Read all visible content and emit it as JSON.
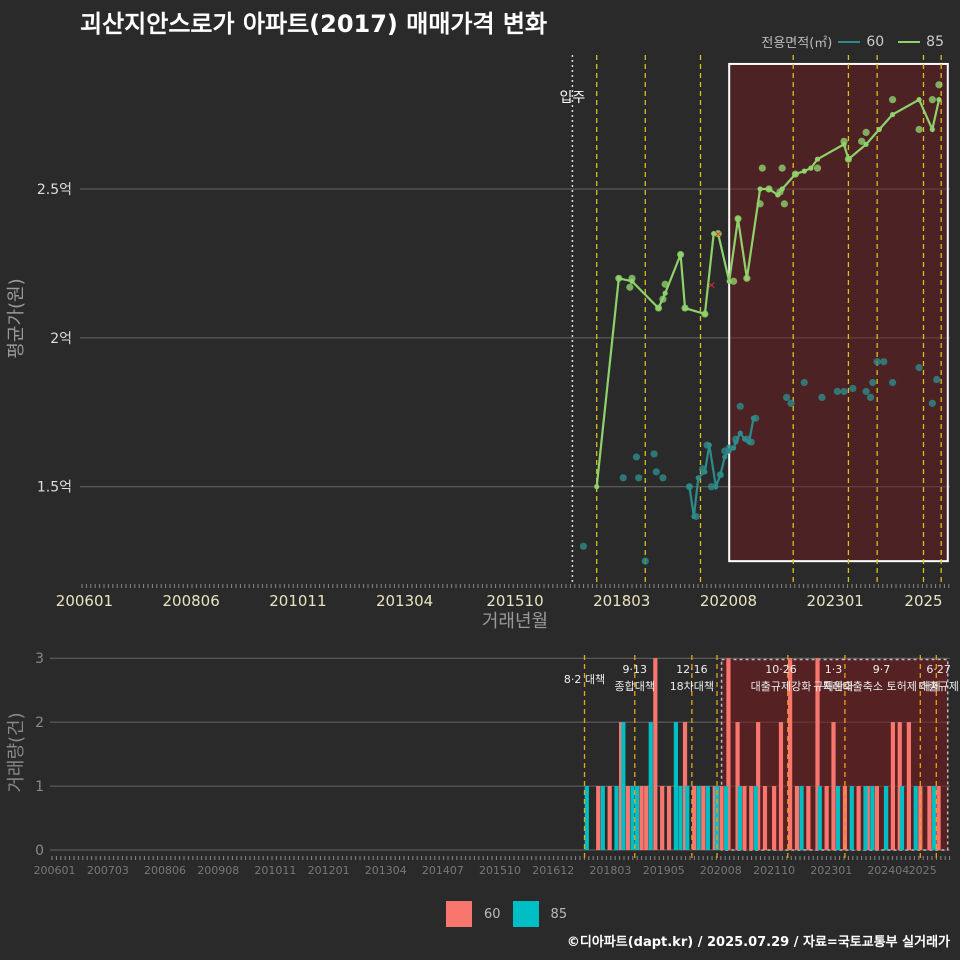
{
  "title": "괴산지안스로가 아파트(2017) 매매가격 변화",
  "footer": "©디아파트(dapt.kr) / 2025.07.29 / 자료=국토교통부 실거래가",
  "legend_title": "전용면적(㎡)",
  "colors": {
    "s60_line": "#2e8b8b",
    "s85_line": "#8fd16a",
    "bar60": "#f8766d",
    "bar85": "#00bfc4",
    "policy": "#d8c11a",
    "bg": "#2a2a2a"
  },
  "chart_data": [
    {
      "type": "line",
      "name": "price",
      "xlabel": "거래년월",
      "ylabel": "평균가(원)",
      "x_ticks": [
        "200601",
        "200806",
        "201011",
        "201304",
        "201510",
        "201803",
        "202008",
        "202301",
        "2025"
      ],
      "y_ticks": [
        {
          "v": 1.5,
          "label": "1.5억"
        },
        {
          "v": 2.0,
          "label": "2억"
        },
        {
          "v": 2.5,
          "label": "2.5억"
        }
      ],
      "ylim": [
        1.18,
        2.95
      ],
      "xlim": [
        2005.9,
        2025.6
      ],
      "move_in": {
        "x": 2017.05,
        "label": "입주"
      },
      "policy_lines": [
        2017.6,
        2018.7,
        2019.95,
        2022.05,
        2023.3,
        2023.95,
        2025.0,
        2025.4
      ],
      "highlight_range": [
        2020.6,
        2025.55
      ],
      "series": [
        {
          "name": "60",
          "x": [
            2019.7,
            2019.8,
            2019.9,
            2020.05,
            2020.15,
            2020.3,
            2020.4,
            2020.5,
            2020.6,
            2020.7,
            2020.75,
            2020.85,
            2020.95,
            2021.05,
            2021.15
          ],
          "values": [
            1.5,
            1.4,
            1.53,
            1.55,
            1.64,
            1.5,
            1.54,
            1.6,
            1.62,
            1.63,
            1.65,
            1.68,
            1.66,
            1.65,
            1.73
          ]
        },
        {
          "name": "85",
          "x": [
            2017.6,
            2018.1,
            2018.4,
            2019.0,
            2019.15,
            2019.5,
            2019.6,
            2020.05,
            2020.25,
            2020.35,
            2020.6,
            2020.8,
            2021.0,
            2021.3,
            2021.5,
            2021.7,
            2021.8,
            2022.1,
            2022.3,
            2022.45,
            2022.6,
            2023.2,
            2023.3,
            2023.7,
            2024.0,
            2024.3,
            2024.9,
            2025.2,
            2025.35
          ],
          "values": [
            1.5,
            2.2,
            2.19,
            2.1,
            2.15,
            2.28,
            2.1,
            2.08,
            2.35,
            2.35,
            2.19,
            2.4,
            2.2,
            2.5,
            2.5,
            2.48,
            2.5,
            2.55,
            2.56,
            2.57,
            2.6,
            2.65,
            2.6,
            2.65,
            2.7,
            2.75,
            2.8,
            2.7,
            2.8
          ]
        }
      ],
      "scatter": [
        {
          "name": "60",
          "points": [
            [
              2017.3,
              1.3
            ],
            [
              2018.2,
              1.53
            ],
            [
              2018.5,
              1.6
            ],
            [
              2018.55,
              1.53
            ],
            [
              2018.7,
              1.25
            ],
            [
              2018.9,
              1.61
            ],
            [
              2018.95,
              1.55
            ],
            [
              2019.1,
              1.53
            ],
            [
              2019.7,
              1.5
            ],
            [
              2019.85,
              1.4
            ],
            [
              2020.0,
              1.56
            ],
            [
              2020.1,
              1.64
            ],
            [
              2020.2,
              1.5
            ],
            [
              2020.4,
              1.54
            ],
            [
              2020.5,
              1.62
            ],
            [
              2020.6,
              1.63
            ],
            [
              2020.75,
              1.66
            ],
            [
              2020.85,
              1.77
            ],
            [
              2021.0,
              1.66
            ],
            [
              2021.1,
              1.65
            ],
            [
              2021.2,
              1.73
            ],
            [
              2021.9,
              1.8
            ],
            [
              2022.0,
              1.78
            ],
            [
              2022.3,
              1.85
            ],
            [
              2022.7,
              1.8
            ],
            [
              2023.05,
              1.82
            ],
            [
              2023.2,
              1.82
            ],
            [
              2023.4,
              1.83
            ],
            [
              2023.7,
              1.82
            ],
            [
              2023.8,
              1.8
            ],
            [
              2023.85,
              1.85
            ],
            [
              2023.95,
              1.92
            ],
            [
              2024.1,
              1.92
            ],
            [
              2024.3,
              1.85
            ],
            [
              2024.9,
              1.9
            ],
            [
              2025.2,
              1.78
            ],
            [
              2025.3,
              1.86
            ]
          ]
        },
        {
          "name": "85",
          "points": [
            [
              2018.1,
              2.2
            ],
            [
              2018.35,
              2.17
            ],
            [
              2018.4,
              2.2
            ],
            [
              2019.0,
              2.1
            ],
            [
              2019.1,
              2.13
            ],
            [
              2019.15,
              2.18
            ],
            [
              2019.5,
              2.28
            ],
            [
              2019.6,
              2.1
            ],
            [
              2020.05,
              2.08
            ],
            [
              2020.35,
              2.35
            ],
            [
              2020.7,
              2.19
            ],
            [
              2020.8,
              2.4
            ],
            [
              2021.0,
              2.2
            ],
            [
              2021.3,
              2.45
            ],
            [
              2021.35,
              2.57
            ],
            [
              2021.5,
              2.5
            ],
            [
              2021.75,
              2.49
            ],
            [
              2021.8,
              2.57
            ],
            [
              2021.85,
              2.45
            ],
            [
              2022.1,
              2.55
            ],
            [
              2022.6,
              2.57
            ],
            [
              2023.2,
              2.66
            ],
            [
              2023.3,
              2.6
            ],
            [
              2023.6,
              2.66
            ],
            [
              2023.7,
              2.69
            ],
            [
              2024.3,
              2.8
            ],
            [
              2024.9,
              2.7
            ],
            [
              2025.2,
              2.8
            ],
            [
              2025.35,
              2.85
            ]
          ]
        }
      ],
      "outliers": [
        [
          2020.2,
          2.18
        ],
        [
          2020.35,
          2.35
        ]
      ]
    },
    {
      "type": "bar",
      "name": "volume",
      "xlabel": "",
      "ylabel": "거래량(건)",
      "x_ticks": [
        "200601",
        "200703",
        "200806",
        "200908",
        "201011",
        "201201",
        "201304",
        "201407",
        "201510",
        "201612",
        "201803",
        "201905",
        "202008",
        "202110",
        "202301",
        "202404",
        "2025"
      ],
      "y_ticks": [
        0,
        1,
        2,
        3
      ],
      "ylim": [
        0,
        3.05
      ],
      "xlim": [
        2005.9,
        2025.6
      ],
      "policy_lines": [
        2017.6,
        2018.7,
        2019.95,
        2020.5,
        2022.05,
        2023.3,
        2024.95,
        2025.3
      ],
      "policy_labels": [
        {
          "x": 2017.6,
          "lines": [
            "8·2 대책"
          ]
        },
        {
          "x": 2018.7,
          "lines": [
            "9·13",
            "종합대책"
          ]
        },
        {
          "x": 2019.95,
          "lines": [
            "12·16",
            "18차대책"
          ]
        },
        {
          "x": 2021.9,
          "lines": [
            "10·26",
            "대출규제강화"
          ]
        },
        {
          "x": 2023.05,
          "lines": [
            "1·3",
            "규제완화"
          ]
        },
        {
          "x": 2024.1,
          "lines": [
            "9·7",
            "특례대출축소 토허제 해제"
          ]
        },
        {
          "x": 2025.35,
          "lines": [
            "6·27",
            "대출규제"
          ]
        }
      ],
      "highlight_range": [
        2020.6,
        2025.55
      ],
      "series": [
        {
          "name": "60",
          "bars": [
            [
              2017.9,
              1
            ],
            [
              2018.15,
              1
            ],
            [
              2018.4,
              2
            ],
            [
              2018.55,
              1
            ],
            [
              2018.85,
              1
            ],
            [
              2018.95,
              1
            ],
            [
              2019.15,
              3
            ],
            [
              2019.3,
              1
            ],
            [
              2019.45,
              1
            ],
            [
              2019.8,
              2
            ],
            [
              2020.0,
              1
            ],
            [
              2020.2,
              1
            ],
            [
              2020.45,
              1
            ],
            [
              2020.6,
              1
            ],
            [
              2020.75,
              3
            ],
            [
              2020.95,
              2
            ],
            [
              2021.1,
              1
            ],
            [
              2021.25,
              1
            ],
            [
              2021.4,
              2
            ],
            [
              2021.55,
              1
            ],
            [
              2021.75,
              1
            ],
            [
              2021.9,
              2
            ],
            [
              2022.1,
              3
            ],
            [
              2022.25,
              1
            ],
            [
              2022.5,
              1
            ],
            [
              2022.7,
              3
            ],
            [
              2022.9,
              1
            ],
            [
              2023.05,
              2
            ],
            [
              2023.3,
              1
            ],
            [
              2023.6,
              1
            ],
            [
              2023.8,
              1
            ],
            [
              2024.0,
              1
            ],
            [
              2024.2,
              1
            ],
            [
              2024.35,
              2
            ],
            [
              2024.5,
              2
            ],
            [
              2024.7,
              2
            ],
            [
              2024.95,
              1
            ],
            [
              2025.15,
              1
            ],
            [
              2025.35,
              1
            ]
          ]
        },
        {
          "name": "85",
          "bars": [
            [
              2017.65,
              1
            ],
            [
              2018.0,
              1
            ],
            [
              2018.3,
              1
            ],
            [
              2018.45,
              2
            ],
            [
              2018.65,
              1
            ],
            [
              2018.75,
              1
            ],
            [
              2019.05,
              2
            ],
            [
              2019.6,
              2
            ],
            [
              2019.7,
              1
            ],
            [
              2019.85,
              1
            ],
            [
              2020.1,
              1
            ],
            [
              2020.3,
              1
            ],
            [
              2020.5,
              1
            ],
            [
              2020.7,
              1
            ],
            [
              2021.0,
              1
            ],
            [
              2021.35,
              1
            ],
            [
              2022.35,
              1
            ],
            [
              2022.75,
              1
            ],
            [
              2023.15,
              1
            ],
            [
              2023.45,
              1
            ],
            [
              2023.75,
              1
            ],
            [
              2023.9,
              1
            ],
            [
              2024.2,
              1
            ],
            [
              2024.55,
              1
            ],
            [
              2024.85,
              1
            ],
            [
              2025.25,
              1
            ]
          ]
        }
      ]
    }
  ]
}
